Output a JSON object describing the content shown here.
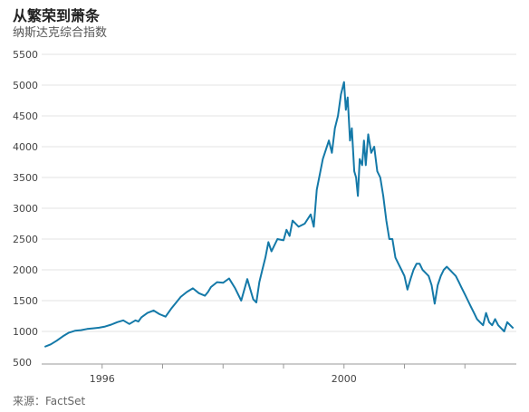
{
  "header": {
    "title": "从繁荣到萧条",
    "subtitle": "纳斯达克综合指数"
  },
  "footer": {
    "source": "来源：FactSet"
  },
  "colors": {
    "line": "#1479a8",
    "grid": "#e3e3e3",
    "axis": "#999999"
  },
  "chart_data": {
    "type": "line",
    "title": "从繁荣到萧条",
    "subtitle": "纳斯达克综合指数",
    "xlabel": "",
    "ylabel": "",
    "ylim": [
      500,
      5500
    ],
    "xlim": [
      1995.0,
      2002.85
    ],
    "yticks": [
      500,
      1000,
      1500,
      2000,
      2500,
      3000,
      3500,
      4000,
      4500,
      5000,
      5500
    ],
    "xtick_labels": [
      {
        "x": 1996,
        "label": "1996"
      },
      {
        "x": 2000,
        "label": "2000"
      }
    ],
    "xtick_marks": [
      1996,
      1997,
      1998,
      1999,
      2000,
      2001,
      2002
    ],
    "grid": true,
    "legend": "none",
    "series": [
      {
        "x": [
          1995.05,
          1995.15,
          1995.25,
          1995.35,
          1995.45,
          1995.55,
          1995.65,
          1995.75,
          1995.85,
          1995.95,
          1996.05,
          1996.15,
          1996.25,
          1996.35,
          1996.45,
          1996.55,
          1996.6,
          1996.65,
          1996.75,
          1996.85,
          1996.95,
          1997.05,
          1997.15,
          1997.25,
          1997.3,
          1997.4,
          1997.5,
          1997.6,
          1997.7,
          1997.75,
          1997.8,
          1997.9,
          1998.0,
          1998.1,
          1998.2,
          1998.3,
          1998.4,
          1998.5,
          1998.55,
          1998.6,
          1998.65,
          1998.7,
          1998.75,
          1998.8,
          1998.9,
          1999.0,
          1999.05,
          1999.1,
          1999.15,
          1999.25,
          1999.35,
          1999.45,
          1999.5,
          1999.55,
          1999.65,
          1999.75,
          1999.8,
          1999.85,
          1999.9,
          1999.95,
          2000.0,
          2000.03,
          2000.06,
          2000.1,
          2000.13,
          2000.17,
          2000.2,
          2000.23,
          2000.26,
          2000.3,
          2000.33,
          2000.36,
          2000.4,
          2000.45,
          2000.5,
          2000.55,
          2000.6,
          2000.65,
          2000.7,
          2000.75,
          2000.8,
          2000.85,
          2000.9,
          2000.95,
          2001.0,
          2001.05,
          2001.1,
          2001.15,
          2001.2,
          2001.25,
          2001.3,
          2001.35,
          2001.4,
          2001.45,
          2001.5,
          2001.55,
          2001.6,
          2001.65,
          2001.7,
          2001.75,
          2001.8,
          2001.85,
          2001.9,
          2001.95,
          2002.0,
          2002.05,
          2002.1,
          2002.15,
          2002.2,
          2002.25,
          2002.3,
          2002.35,
          2002.4,
          2002.45,
          2002.5,
          2002.55,
          2002.6,
          2002.65,
          2002.7,
          2002.75,
          2002.8
        ],
        "values": [
          750,
          790,
          850,
          920,
          980,
          1010,
          1020,
          1040,
          1050,
          1060,
          1080,
          1110,
          1150,
          1180,
          1120,
          1180,
          1160,
          1230,
          1300,
          1340,
          1280,
          1240,
          1380,
          1500,
          1560,
          1640,
          1700,
          1620,
          1580,
          1640,
          1720,
          1800,
          1790,
          1860,
          1700,
          1500,
          1850,
          1520,
          1470,
          1800,
          2000,
          2200,
          2450,
          2300,
          2500,
          2480,
          2650,
          2550,
          2800,
          2700,
          2750,
          2900,
          2700,
          3300,
          3800,
          4100,
          3900,
          4300,
          4500,
          4850,
          5050,
          4600,
          4800,
          4100,
          4300,
          3600,
          3500,
          3200,
          3800,
          3700,
          4100,
          3700,
          4200,
          3900,
          4000,
          3600,
          3500,
          3200,
          2800,
          2500,
          2500,
          2200,
          2100,
          2000,
          1900,
          1680,
          1850,
          2000,
          2100,
          2100,
          2000,
          1950,
          1900,
          1750,
          1450,
          1750,
          1900,
          2000,
          2050,
          2000,
          1950,
          1900,
          1800,
          1700,
          1600,
          1500,
          1400,
          1300,
          1200,
          1150,
          1100,
          1300,
          1150,
          1100,
          1200,
          1100,
          1050,
          1000,
          1150,
          1100,
          1050
        ]
      }
    ]
  }
}
